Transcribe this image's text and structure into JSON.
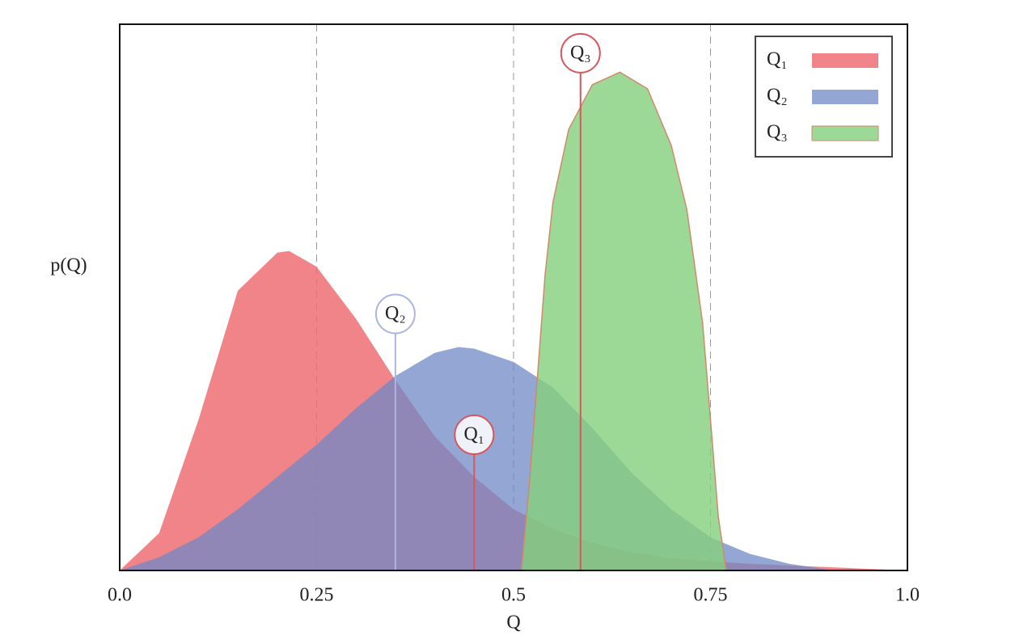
{
  "chart_data": {
    "type": "area",
    "xlabel": "Q",
    "ylabel": "p(Q)",
    "xlim": [
      0,
      1
    ],
    "ylim": [
      0,
      6.6
    ],
    "xticks": [
      {
        "value": 0,
        "label": "0.0"
      },
      0.25,
      0.5,
      0.75,
      {
        "value": 1,
        "label": "1.0"
      }
    ],
    "grid": true,
    "legend": "upper right",
    "series": [
      {
        "name": "Q₁",
        "color": "#ee6f74",
        "x": [
          0,
          0.05,
          0.1,
          0.15,
          0.2,
          0.215,
          0.25,
          0.3,
          0.35,
          0.4,
          0.45,
          0.5,
          0.55,
          0.6,
          0.65,
          0.7,
          0.75,
          0.8,
          0.85,
          0.9,
          0.95,
          1.0
        ],
        "values": [
          0,
          0.45,
          1.82,
          3.38,
          3.84,
          3.86,
          3.67,
          3.04,
          2.3,
          1.62,
          1.13,
          0.74,
          0.5,
          0.33,
          0.22,
          0.15,
          0.11,
          0.08,
          0.06,
          0.04,
          0.02,
          0
        ]
      },
      {
        "name": "Q₂",
        "color": "#7088c6",
        "x": [
          0,
          0.05,
          0.1,
          0.15,
          0.2,
          0.25,
          0.3,
          0.35,
          0.4,
          0.43,
          0.45,
          0.5,
          0.55,
          0.6,
          0.65,
          0.7,
          0.75,
          0.8,
          0.85,
          0.9,
          0.95,
          1.0
        ],
        "values": [
          0,
          0.16,
          0.4,
          0.74,
          1.13,
          1.52,
          1.96,
          2.35,
          2.63,
          2.7,
          2.68,
          2.52,
          2.21,
          1.72,
          1.18,
          0.74,
          0.4,
          0.2,
          0.08,
          0.01,
          0,
          0
        ]
      },
      {
        "name": "Q₃",
        "color": "#84d07c",
        "x": [
          0.51,
          0.52,
          0.53,
          0.54,
          0.55,
          0.57,
          0.6,
          0.635,
          0.67,
          0.7,
          0.72,
          0.74,
          0.75,
          0.76,
          0.77
        ],
        "values": [
          0,
          1.04,
          2.3,
          3.57,
          4.45,
          5.33,
          5.87,
          6.02,
          5.82,
          5.14,
          4.36,
          2.99,
          1.82,
          0.64,
          0
        ]
      }
    ],
    "markers": [
      {
        "label": "Q₁",
        "x": 0.45,
        "y": 1.64,
        "color": "#d9575c"
      },
      {
        "label": "Q₂",
        "x": 0.35,
        "y": 3.1,
        "color": "#aab6de"
      },
      {
        "label": "Q₃",
        "x": 0.585,
        "y": 6.25,
        "color": "#d9575c"
      }
    ]
  }
}
